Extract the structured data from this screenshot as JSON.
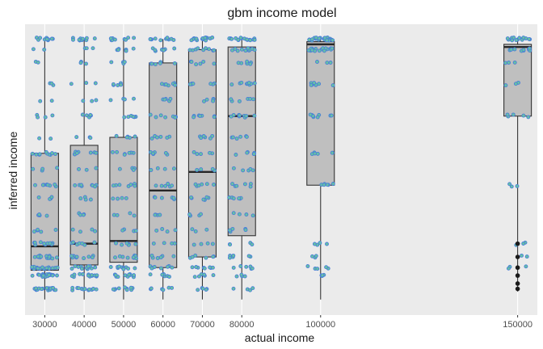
{
  "chart_data": {
    "type": "boxplot",
    "title": "gbm income model",
    "xlabel": "actual income",
    "ylabel": "inferred income",
    "categories": [
      "30000",
      "40000",
      "50000",
      "60000",
      "70000",
      "80000",
      "100000",
      "150000"
    ],
    "x_values": [
      30000,
      40000,
      50000,
      60000,
      70000,
      80000,
      100000,
      150000
    ],
    "xlim": [
      25000,
      155000
    ],
    "ylim": [
      0,
      1
    ],
    "y_tick_labels_shown": false,
    "grid": true,
    "boxes": [
      {
        "x": 30000,
        "whisker_low": 0.01,
        "q1": 0.12,
        "median": 0.21,
        "q3": 0.56,
        "whisker_high": 0.99
      },
      {
        "x": 40000,
        "whisker_low": 0.01,
        "q1": 0.14,
        "median": 0.22,
        "q3": 0.59,
        "whisker_high": 0.99
      },
      {
        "x": 50000,
        "whisker_low": 0.01,
        "q1": 0.15,
        "median": 0.23,
        "q3": 0.62,
        "whisker_high": 0.99
      },
      {
        "x": 60000,
        "whisker_low": 0.01,
        "q1": 0.13,
        "median": 0.42,
        "q3": 0.9,
        "whisker_high": 0.99
      },
      {
        "x": 70000,
        "whisker_low": 0.01,
        "q1": 0.17,
        "median": 0.49,
        "q3": 0.95,
        "whisker_high": 0.99
      },
      {
        "x": 80000,
        "whisker_low": 0.01,
        "q1": 0.25,
        "median": 0.7,
        "q3": 0.96,
        "whisker_high": 0.99
      },
      {
        "x": 100000,
        "whisker_low": 0.01,
        "q1": 0.44,
        "median": 0.97,
        "q3": 0.98,
        "whisker_high": 0.99
      },
      {
        "x": 150000,
        "whisker_low": 0.04,
        "q1": 0.7,
        "median": 0.96,
        "q3": 0.97,
        "whisker_high": 0.99,
        "outliers": [
          0.22,
          0.17,
          0.13,
          0.1,
          0.07,
          0.05
        ]
      }
    ],
    "jitter_points": {
      "fill": "#66c2a5",
      "stroke": "#4a7fd8",
      "y_levels": [
        0.05,
        0.1,
        0.13,
        0.17,
        0.22,
        0.27,
        0.33,
        0.39,
        0.44,
        0.5,
        0.56,
        0.62,
        0.7,
        0.76,
        0.82,
        0.9,
        0.95,
        0.99
      ],
      "level_weights": [
        [
          18,
          22,
          18,
          16,
          10,
          5,
          4,
          4,
          9,
          4,
          10,
          2,
          4,
          2,
          3,
          2,
          2,
          10
        ],
        [
          12,
          14,
          12,
          10,
          7,
          4,
          4,
          4,
          8,
          3,
          8,
          3,
          5,
          3,
          3,
          3,
          3,
          10
        ],
        [
          10,
          12,
          10,
          9,
          6,
          4,
          4,
          4,
          7,
          4,
          7,
          5,
          6,
          4,
          5,
          4,
          6,
          10
        ],
        [
          6,
          7,
          8,
          6,
          4,
          4,
          4,
          6,
          6,
          4,
          6,
          6,
          7,
          5,
          7,
          6,
          8,
          12
        ],
        [
          5,
          6,
          8,
          6,
          4,
          3,
          4,
          6,
          6,
          4,
          5,
          6,
          7,
          5,
          7,
          6,
          9,
          14
        ],
        [
          4,
          4,
          6,
          6,
          4,
          5,
          4,
          6,
          6,
          5,
          6,
          6,
          9,
          6,
          9,
          7,
          14,
          18
        ],
        [
          0,
          5,
          5,
          3,
          4,
          0,
          0,
          0,
          6,
          0,
          6,
          0,
          8,
          0,
          8,
          3,
          18,
          25
        ],
        [
          0,
          0,
          3,
          2,
          3,
          0,
          0,
          0,
          3,
          0,
          0,
          0,
          5,
          0,
          3,
          3,
          10,
          14
        ]
      ]
    }
  }
}
